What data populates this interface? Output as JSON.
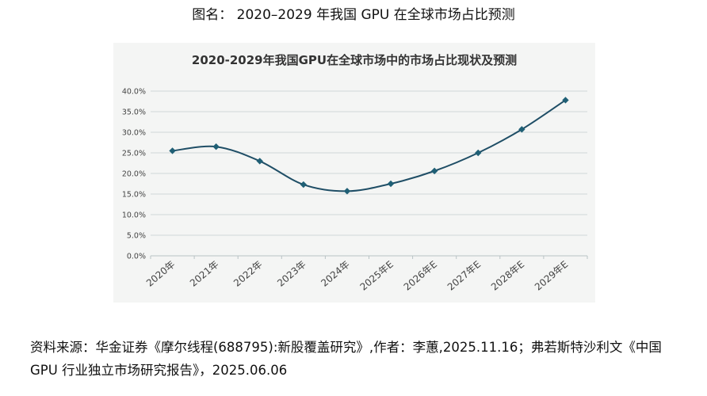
{
  "figure_caption": "图名： 2020–2029 年我国 GPU 在全球市场占比预测",
  "source_text": "资料来源：华金证券《摩尔线程(688795):新股覆盖研究》,作者：李蕙,2025.11.16；弗若斯特沙利文《中国 GPU 行业独立市场研究报告》，2025.06.06",
  "chart_data": {
    "type": "line",
    "title": "2020-2029年我国GPU在全球市场中的市场占比现状及预测",
    "categories": [
      "2020年",
      "2021年",
      "2022年",
      "2023年",
      "2024年",
      "2025年E",
      "2026年E",
      "2027年E",
      "2028年E",
      "2029年E"
    ],
    "series": [
      {
        "values": [
          25.5,
          26.5,
          23.0,
          17.3,
          15.7,
          17.5,
          20.6,
          25.0,
          30.7,
          37.8
        ]
      }
    ],
    "ylim": [
      0,
      40
    ],
    "yticks": [
      "0.0%",
      "5.0%",
      "10.0%",
      "15.0%",
      "20.0%",
      "25.0%",
      "30.0%",
      "35.0%",
      "40.0%"
    ],
    "xlabel": "",
    "ylabel": "",
    "grid": "horizontal",
    "line_color": "#1f4e66",
    "marker_color": "#1f5f75",
    "grid_color": "#cfd6d8"
  }
}
